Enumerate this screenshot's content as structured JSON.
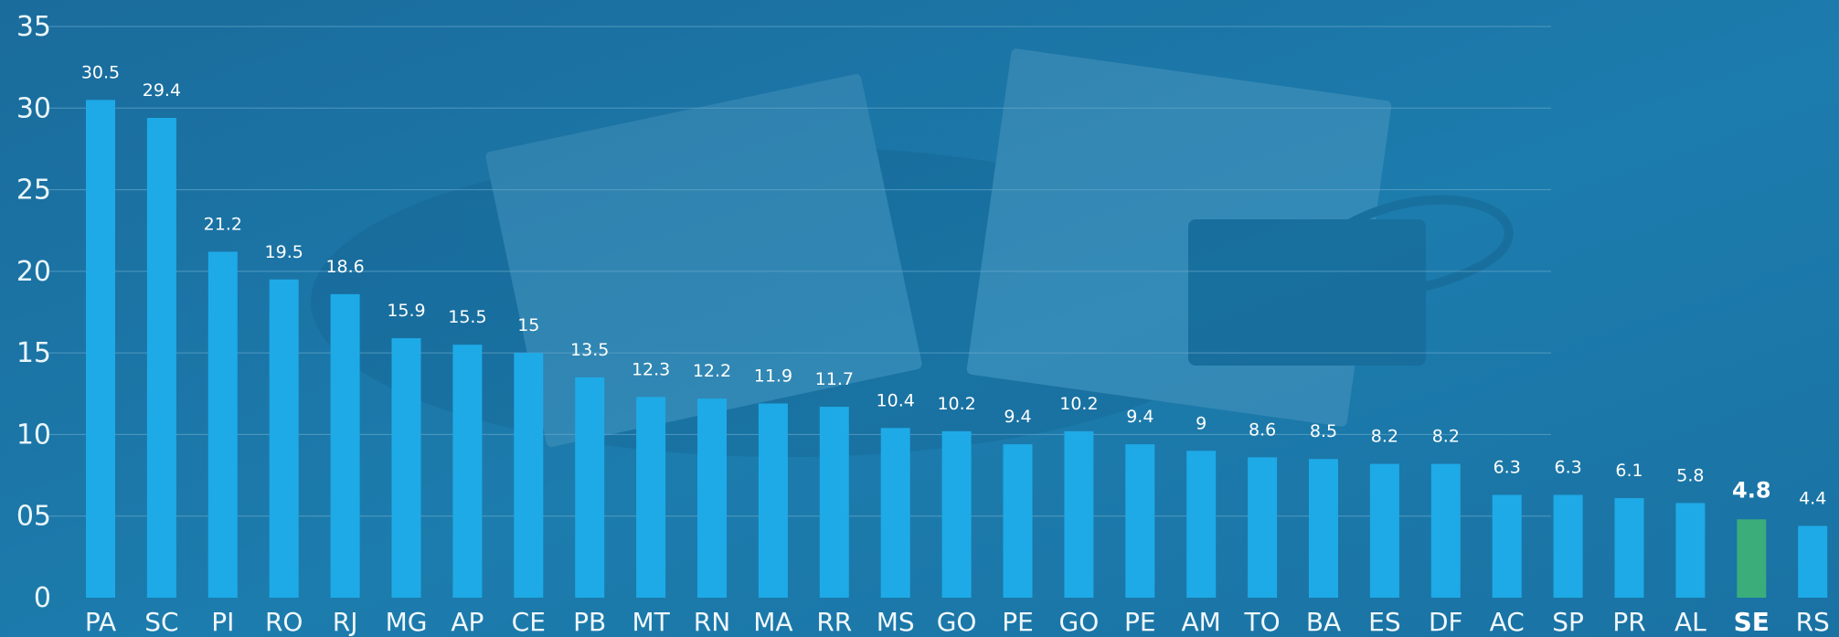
{
  "chart_data": {
    "type": "bar",
    "categories": [
      "PA",
      "SC",
      "PI",
      "RO",
      "RJ",
      "MG",
      "AP",
      "CE",
      "PB",
      "MT",
      "RN",
      "MA",
      "RR",
      "MS",
      "GO",
      "PE",
      "GO",
      "PE",
      "AM",
      "TO",
      "BA",
      "ES",
      "DF",
      "AC",
      "SP",
      "PR",
      "AL",
      "SE",
      "RS"
    ],
    "values": [
      30.5,
      29.4,
      21.2,
      19.5,
      18.6,
      15.9,
      15.5,
      15,
      13.5,
      12.3,
      12.2,
      11.9,
      11.7,
      10.4,
      10.2,
      9.4,
      10.2,
      9.4,
      9,
      8.6,
      8.5,
      8.2,
      8.2,
      6.3,
      6.3,
      6.1,
      5.8,
      4.8,
      4.4
    ],
    "value_labels": [
      "30.5",
      "29.4",
      "21.2",
      "19.5",
      "18.6",
      "15.9",
      "15.5",
      "15",
      "13.5",
      "12.3",
      "12.2",
      "11.9",
      "11.7",
      "10.4",
      "10.2",
      "9.4",
      "10.2",
      "9.4",
      "9",
      "8.6",
      "8.5",
      "8.2",
      "8.2",
      "6.3",
      "6.3",
      "6.1",
      "5.8",
      "4.8",
      "4.4"
    ],
    "highlight_index": 27,
    "yticks": [
      0,
      5,
      10,
      15,
      20,
      25,
      30,
      35
    ],
    "ytick_labels": [
      "0",
      "05",
      "10",
      "15",
      "20",
      "25",
      "30",
      "35"
    ],
    "ylim": [
      0,
      35
    ],
    "grid": true,
    "title": "",
    "xlabel": "",
    "ylabel": "",
    "colors": {
      "bar": "#1eaae7",
      "highlight": "#3aad7b",
      "background": "#1a79a9",
      "gridline": "#66a9cc"
    }
  }
}
